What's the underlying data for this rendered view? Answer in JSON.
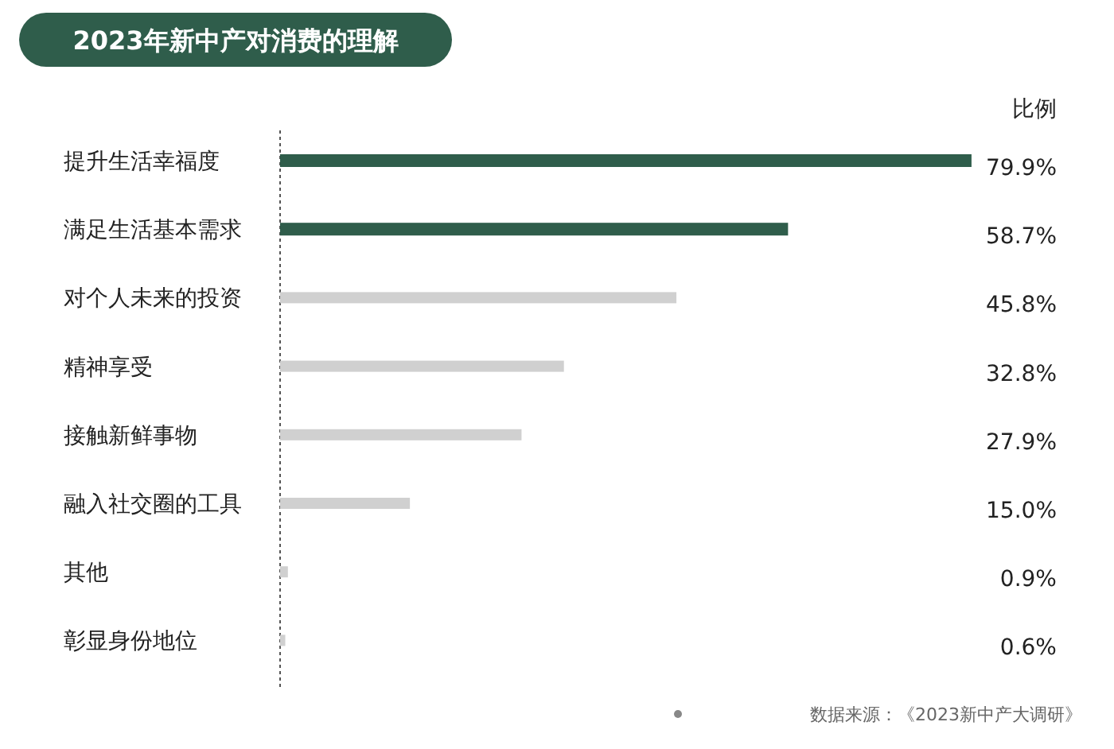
{
  "chart_data": {
    "type": "bar",
    "orientation": "horizontal",
    "title": "2023年新中产对消费的理解",
    "xlabel": "比例",
    "categories": [
      "提升生活幸福度",
      "满足生活基本需求",
      "对个人未来的投资",
      "精神享受",
      "接触新鲜事物",
      "融入社交圈的工具",
      "其他",
      "彰显身份地位"
    ],
    "values": [
      79.9,
      58.7,
      45.8,
      32.8,
      27.9,
      15.0,
      0.9,
      0.6
    ],
    "colors": [
      "#2f5d4b",
      "#2f5d4b",
      "#d0d0d0",
      "#d0d0d0",
      "#d0d0d0",
      "#d0d0d0",
      "#d0d0d0",
      "#d0d0d0"
    ],
    "value_labels": [
      "79.9%",
      "58.7%",
      "45.8%",
      "32.8%",
      "27.9%",
      "15.0%",
      "0.9%",
      "0.6%"
    ],
    "xlim": [
      0,
      80
    ],
    "tick_labels": "y",
    "annotations": [
      "数据来源：《2023新中产大调研》"
    ]
  }
}
